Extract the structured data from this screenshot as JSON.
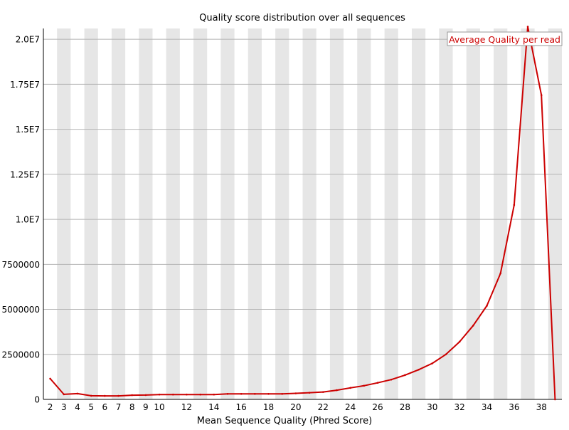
{
  "chart_data": {
    "type": "line",
    "title": "Quality score distribution over all sequences",
    "xlabel": "Mean Sequence Quality (Phred Score)",
    "ylabel": "",
    "x": [
      2,
      3,
      4,
      5,
      6,
      7,
      8,
      9,
      10,
      11,
      12,
      13,
      14,
      15,
      16,
      17,
      18,
      19,
      20,
      21,
      22,
      23,
      24,
      25,
      26,
      27,
      28,
      29,
      30,
      31,
      32,
      33,
      34,
      35,
      36,
      37,
      38,
      39
    ],
    "series": [
      {
        "name": "Average Quality per read",
        "values": [
          1150000,
          280000,
          320000,
          200000,
          195000,
          195000,
          235000,
          240000,
          270000,
          270000,
          270000,
          270000,
          270000,
          305000,
          305000,
          305000,
          305000,
          305000,
          335000,
          370000,
          410000,
          510000,
          640000,
          760000,
          920000,
          1100000,
          1350000,
          1650000,
          2000000,
          2500000,
          3200000,
          4100000,
          5200000,
          7000000,
          10800000,
          20700000,
          16900000,
          0
        ],
        "color": "#cc0000"
      }
    ],
    "xticks": [
      "2",
      "3",
      "4",
      "5",
      "6",
      "7",
      "8",
      "9",
      "10",
      "12",
      "14",
      "16",
      "18",
      "20",
      "22",
      "24",
      "26",
      "28",
      "30",
      "32",
      "34",
      "36",
      "38"
    ],
    "yticks": [
      {
        "value": 0,
        "label": "0"
      },
      {
        "value": 2500000,
        "label": "2500000"
      },
      {
        "value": 5000000,
        "label": "5000000"
      },
      {
        "value": 7500000,
        "label": "7500000"
      },
      {
        "value": 10000000,
        "label": "1.0E7"
      },
      {
        "value": 12500000,
        "label": "1.25E7"
      },
      {
        "value": 15000000,
        "label": "1.5E7"
      },
      {
        "value": 17500000,
        "label": "1.75E7"
      },
      {
        "value": 20000000,
        "label": "2.0E7"
      }
    ],
    "ylim": [
      0,
      20600000
    ],
    "xlim": [
      1.5,
      39.5
    ],
    "grid": true,
    "alternating_column_shading": true,
    "shade_color": "#e6e6e6",
    "legend_position": "top-right"
  }
}
